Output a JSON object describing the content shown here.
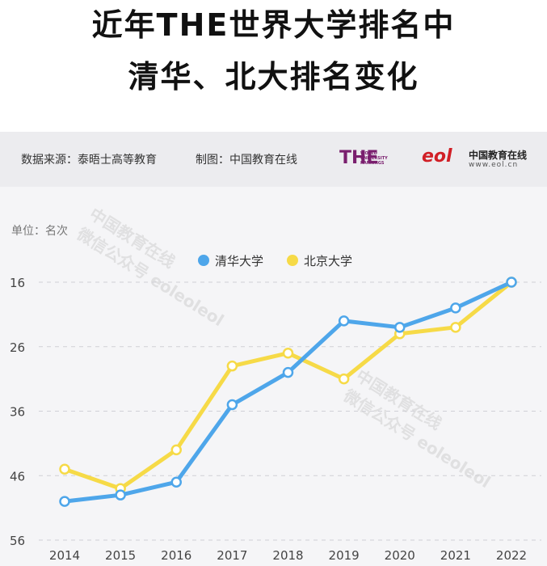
{
  "title": {
    "line1": "近年THE世界大学排名中",
    "line2": "清华、北大排名变化"
  },
  "source_bar": {
    "source": "数据来源：泰晤士高等教育",
    "maker": "制图：中国教育在线",
    "the_logo": {
      "big": "THE",
      "small": [
        "WORLD",
        "UNIVERSITY",
        "RANKINGS"
      ]
    },
    "eol_logo": {
      "mark": "eol",
      "name": "中国教育在线",
      "url": "www.eol.cn"
    }
  },
  "watermark": {
    "line1": "中国教育在线",
    "line2": "微信公众号 eoleoleol"
  },
  "chart_data": {
    "type": "line",
    "unit_label": "单位：名次",
    "categories": [
      "2014",
      "2015",
      "2016",
      "2017",
      "2018",
      "2019",
      "2020",
      "2021",
      "2022"
    ],
    "y_ticks": [
      16,
      26,
      36,
      46,
      56
    ],
    "ylim": [
      16,
      56
    ],
    "y_inverted": true,
    "grid": true,
    "legend": "top-center",
    "series": [
      {
        "name": "清华大学",
        "color": "#4ea6ea",
        "values": [
          50,
          49,
          47,
          35,
          30,
          22,
          23,
          20,
          16
        ]
      },
      {
        "name": "北京大学",
        "color": "#f6da47",
        "values": [
          45,
          48,
          42,
          29,
          27,
          31,
          24,
          23,
          16
        ]
      }
    ]
  }
}
